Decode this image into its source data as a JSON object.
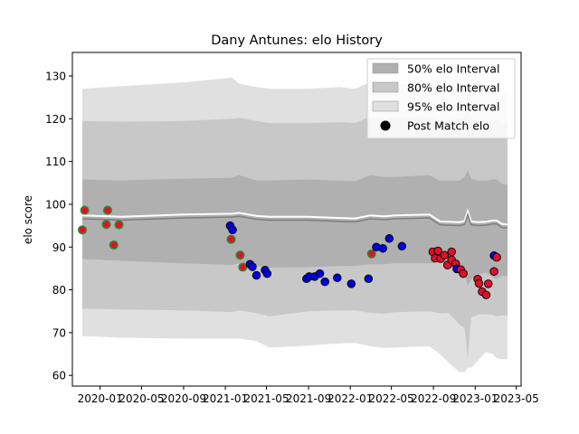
{
  "chart_data": {
    "type": "scatter",
    "title": "Dany Antunes: elo History",
    "xlabel": "",
    "ylabel": "elo score",
    "ylim": [
      57.5,
      135.5
    ],
    "xlim": [
      "2019-10-12",
      "2023-05-15"
    ],
    "grid": false,
    "legend_position": "top-right",
    "legend": [
      {
        "label": "50% elo Interval",
        "kind": "band",
        "color": "#b0b0b0"
      },
      {
        "label": "80% elo Interval",
        "kind": "band",
        "color": "#c8c8c8"
      },
      {
        "label": "95% elo Interval",
        "kind": "band",
        "color": "#e0e0e0"
      },
      {
        "label": "Post Match elo",
        "kind": "marker",
        "color": "#000000"
      }
    ],
    "x_ticks": [
      "2020-01",
      "2020-05",
      "2020-09",
      "2021-01",
      "2021-05",
      "2021-09",
      "2022-01",
      "2022-05",
      "2022-09",
      "2023-01",
      "2023-05"
    ],
    "y_ticks": [
      60,
      70,
      80,
      90,
      100,
      110,
      120,
      130
    ],
    "colors": {
      "band_50": "#b0b0b0",
      "band_80": "#c8c8c8",
      "band_95": "#e0e0e0",
      "mean_line": "#808080",
      "upper_line": "#ffffff",
      "marker_green": "#2e8b2e",
      "marker_red": "#e0102a",
      "marker_blue": "#0000dd",
      "marker_edge_green": "#2e8b2e",
      "marker_edge_other": "#000000"
    },
    "bands": {
      "x": [
        "2019-11-10",
        "2020-03-01",
        "2020-09-01",
        "2021-01-20",
        "2021-02-10",
        "2021-04-01",
        "2021-05-10",
        "2021-09-01",
        "2021-12-01",
        "2022-01-15",
        "2022-03-01",
        "2022-04-10",
        "2022-05-10",
        "2022-08-20",
        "2022-09-20",
        "2022-10-15",
        "2022-11-15",
        "2022-12-01",
        "2022-12-10",
        "2022-12-20",
        "2023-01-10",
        "2023-02-01",
        "2023-02-20",
        "2023-03-05",
        "2023-03-20",
        "2023-04-05"
      ],
      "p50_low": [
        87.2,
        86.8,
        86.2,
        85.8,
        86.2,
        85.6,
        85.2,
        85.3,
        85.6,
        85.6,
        86.0,
        86.0,
        86.2,
        86.2,
        86.4,
        85.8,
        84.2,
        83.5,
        81.0,
        82.5,
        83.5,
        84.0,
        83.0,
        82.5,
        83.3,
        83.2
      ],
      "p50_high": [
        105.8,
        105.6,
        106.0,
        106.2,
        106.8,
        105.6,
        105.6,
        105.8,
        105.5,
        105.4,
        106.8,
        106.4,
        106.4,
        106.8,
        105.5,
        105.5,
        105.5,
        106.4,
        108.0,
        106.0,
        105.5,
        105.5,
        105.8,
        105.8,
        104.8,
        104.6
      ],
      "p80_low": [
        75.6,
        75.4,
        75.2,
        74.8,
        75.2,
        74.6,
        73.8,
        75.0,
        75.2,
        75.2,
        74.6,
        74.4,
        74.8,
        75.0,
        74.5,
        74.6,
        72.0,
        71.0,
        64.0,
        73.5,
        74.2,
        74.3,
        74.2,
        73.8,
        74.0,
        73.9
      ],
      "p80_high": [
        119.5,
        119.3,
        119.5,
        120.0,
        120.2,
        119.5,
        119.0,
        119.0,
        119.2,
        119.0,
        120.5,
        120.0,
        120.2,
        120.5,
        119.6,
        119.6,
        120.0,
        120.4,
        127.0,
        120.0,
        119.2,
        119.2,
        119.5,
        119.5,
        118.8,
        118.8
      ],
      "p95_low": [
        69.2,
        68.8,
        68.6,
        68.6,
        68.6,
        68.0,
        66.5,
        67.0,
        67.5,
        67.6,
        66.8,
        66.4,
        66.5,
        66.8,
        65.0,
        63.0,
        60.8,
        60.8,
        61.8,
        61.8,
        63.5,
        65.5,
        65.0,
        64.0,
        63.8,
        63.8
      ],
      "p95_high": [
        127.0,
        127.6,
        128.5,
        129.6,
        128.2,
        127.4,
        127.0,
        127.0,
        127.4,
        127.0,
        128.6,
        127.6,
        128.0,
        128.2,
        127.6,
        127.6,
        127.6,
        128.2,
        128.8,
        128.2,
        127.8,
        127.8,
        127.4,
        127.4,
        127.0,
        126.8
      ],
      "mean": [
        96.6,
        96.3,
        96.8,
        97.0,
        97.2,
        96.5,
        96.3,
        96.3,
        96.0,
        95.9,
        96.6,
        96.4,
        96.6,
        96.8,
        95.2,
        95.1,
        95.0,
        95.3,
        97.6,
        95.2,
        95.0,
        95.1,
        95.4,
        95.4,
        94.6,
        94.5
      ]
    },
    "points": [
      {
        "x": "2019-11-10",
        "y": 94.0,
        "c": "green"
      },
      {
        "x": "2019-11-17",
        "y": 98.6,
        "c": "green"
      },
      {
        "x": "2020-01-23",
        "y": 98.6,
        "c": "green"
      },
      {
        "x": "2020-01-19",
        "y": 95.3,
        "c": "green"
      },
      {
        "x": "2020-02-10",
        "y": 90.5,
        "c": "green"
      },
      {
        "x": "2020-02-25",
        "y": 95.2,
        "c": "green"
      },
      {
        "x": "2021-01-15",
        "y": 95.0,
        "c": "blue"
      },
      {
        "x": "2021-01-22",
        "y": 94.0,
        "c": "blue"
      },
      {
        "x": "2021-01-18",
        "y": 91.8,
        "c": "green"
      },
      {
        "x": "2021-02-13",
        "y": 88.1,
        "c": "green"
      },
      {
        "x": "2021-02-21",
        "y": 85.3,
        "c": "green"
      },
      {
        "x": "2021-03-14",
        "y": 86.0,
        "c": "blue"
      },
      {
        "x": "2021-03-21",
        "y": 85.4,
        "c": "blue"
      },
      {
        "x": "2021-04-02",
        "y": 83.4,
        "c": "blue"
      },
      {
        "x": "2021-04-27",
        "y": 84.6,
        "c": "blue"
      },
      {
        "x": "2021-05-03",
        "y": 83.8,
        "c": "blue"
      },
      {
        "x": "2021-08-26",
        "y": 82.6,
        "c": "blue"
      },
      {
        "x": "2021-09-03",
        "y": 83.1,
        "c": "blue"
      },
      {
        "x": "2021-09-19",
        "y": 83.1,
        "c": "blue"
      },
      {
        "x": "2021-10-04",
        "y": 83.8,
        "c": "blue"
      },
      {
        "x": "2021-10-19",
        "y": 81.9,
        "c": "blue"
      },
      {
        "x": "2021-11-24",
        "y": 82.8,
        "c": "blue"
      },
      {
        "x": "2022-01-04",
        "y": 81.4,
        "c": "blue"
      },
      {
        "x": "2022-02-23",
        "y": 82.6,
        "c": "blue"
      },
      {
        "x": "2022-03-04",
        "y": 88.4,
        "c": "green"
      },
      {
        "x": "2022-03-18",
        "y": 90.0,
        "c": "blue"
      },
      {
        "x": "2022-04-06",
        "y": 89.7,
        "c": "blue"
      },
      {
        "x": "2022-04-25",
        "y": 92.0,
        "c": "blue"
      },
      {
        "x": "2022-06-01",
        "y": 90.2,
        "c": "blue"
      },
      {
        "x": "2022-08-30",
        "y": 88.9,
        "c": "red"
      },
      {
        "x": "2022-09-06",
        "y": 87.4,
        "c": "red"
      },
      {
        "x": "2022-09-14",
        "y": 89.1,
        "c": "red"
      },
      {
        "x": "2022-09-22",
        "y": 87.3,
        "c": "red"
      },
      {
        "x": "2022-10-03",
        "y": 88.1,
        "c": "red"
      },
      {
        "x": "2022-10-12",
        "y": 85.8,
        "c": "red"
      },
      {
        "x": "2022-10-24",
        "y": 88.9,
        "c": "red"
      },
      {
        "x": "2022-10-24",
        "y": 87.0,
        "c": "red"
      },
      {
        "x": "2022-11-05",
        "y": 86.1,
        "c": "red"
      },
      {
        "x": "2022-11-08",
        "y": 84.9,
        "c": "blue"
      },
      {
        "x": "2022-11-20",
        "y": 84.7,
        "c": "red"
      },
      {
        "x": "2022-11-27",
        "y": 83.8,
        "c": "red"
      },
      {
        "x": "2023-01-08",
        "y": 82.5,
        "c": "red"
      },
      {
        "x": "2023-01-12",
        "y": 81.5,
        "c": "red"
      },
      {
        "x": "2023-01-21",
        "y": 79.6,
        "c": "red"
      },
      {
        "x": "2023-02-02",
        "y": 78.8,
        "c": "red"
      },
      {
        "x": "2023-02-08",
        "y": 81.4,
        "c": "red"
      },
      {
        "x": "2023-02-25",
        "y": 84.3,
        "c": "red"
      },
      {
        "x": "2023-02-25",
        "y": 88.0,
        "c": "blue"
      },
      {
        "x": "2023-03-05",
        "y": 87.6,
        "c": "red"
      }
    ]
  }
}
